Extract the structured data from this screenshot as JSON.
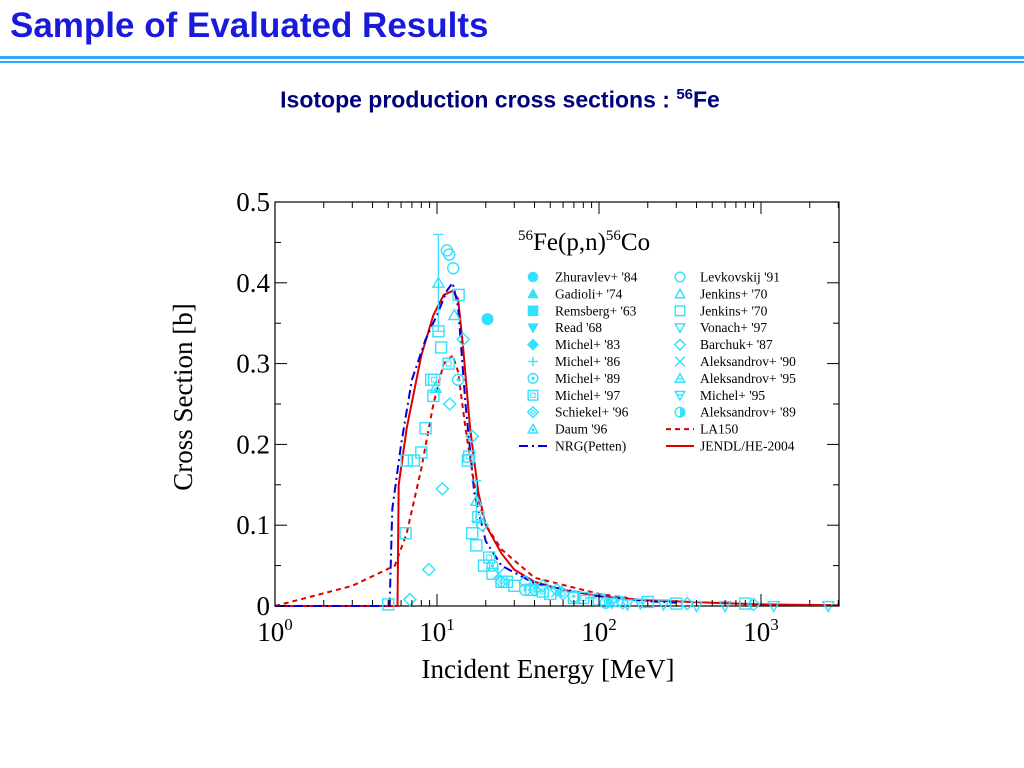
{
  "slide": {
    "title": "Sample of Evaluated Results",
    "subtitle_main": "Isotope production cross sections : ",
    "subtitle_mass": "56",
    "subtitle_element": "Fe"
  },
  "colors": {
    "title": "#1a1adc",
    "subtitle": "#00007a",
    "rule": "#2ea8ff",
    "data_points": "#33e0ff",
    "nrg": "#0000dd",
    "jendl": "#dd0000",
    "la150": "#dd0000"
  },
  "chart_data": {
    "type": "scatter",
    "reaction": {
      "mass_a": "56",
      "target": "Fe(p,n)",
      "mass_b": "56",
      "product": "Co"
    },
    "xlabel": "Incident Energy [MeV]",
    "ylabel": "Cross Section [b]",
    "xscale": "log",
    "xlim": [
      1,
      3000
    ],
    "ylim": [
      0,
      0.5
    ],
    "grid": false,
    "legend_position": "top-right",
    "x_ticks": [
      {
        "value": 1,
        "base": "10",
        "exp": "0"
      },
      {
        "value": 10,
        "base": "10",
        "exp": "1"
      },
      {
        "value": 100,
        "base": "10",
        "exp": "2"
      },
      {
        "value": 1000,
        "base": "10",
        "exp": "3"
      }
    ],
    "y_ticks": [
      {
        "value": 0,
        "label": "0"
      },
      {
        "value": 0.1,
        "label": "0.1"
      },
      {
        "value": 0.2,
        "label": "0.2"
      },
      {
        "value": 0.3,
        "label": "0.3"
      },
      {
        "value": 0.4,
        "label": "0.4"
      },
      {
        "value": 0.5,
        "label": "0.5"
      }
    ],
    "legend": [
      {
        "label": "Zhuravlev+ '84",
        "marker": "circle-filled"
      },
      {
        "label": "Levkovskij '91",
        "marker": "circle-open"
      },
      {
        "label": "Gadioli+ '74",
        "marker": "triangle-up-filled"
      },
      {
        "label": "Jenkins+ '70",
        "marker": "triangle-up-open"
      },
      {
        "label": "Remsberg+ '63",
        "marker": "square-filled"
      },
      {
        "label": "Jenkins+ '70",
        "marker": "square-open"
      },
      {
        "label": "Read '68",
        "marker": "triangle-down-filled"
      },
      {
        "label": "Vonach+ '97",
        "marker": "triangle-down-open"
      },
      {
        "label": "Michel+ '83",
        "marker": "diamond-filled"
      },
      {
        "label": "Barchuk+ '87",
        "marker": "diamond-open"
      },
      {
        "label": "Michel+ '86",
        "marker": "plus"
      },
      {
        "label": "Aleksandrov+ '90",
        "marker": "cross"
      },
      {
        "label": "Michel+ '89",
        "marker": "circle-dot"
      },
      {
        "label": "Aleksandrov+ '95",
        "marker": "triangle-up-lined"
      },
      {
        "label": "Michel+ '97",
        "marker": "square-dot"
      },
      {
        "label": "Michel+ '95",
        "marker": "triangle-down-lined"
      },
      {
        "label": "Schiekel+ '96",
        "marker": "diamond-dot"
      },
      {
        "label": "Aleksandrov+ '89",
        "marker": "circle-half"
      },
      {
        "label": "Daum '96",
        "marker": "triangle-up-dot"
      },
      {
        "label": "LA150",
        "marker": "line-dashed"
      },
      {
        "label": "NRG(Petten)",
        "marker": "line-dashdot"
      },
      {
        "label": "JENDL/HE-2004",
        "marker": "line-solid"
      }
    ],
    "series": [
      {
        "name": "JENDL/HE-2004",
        "style": "solid",
        "x": [
          1,
          5.7,
          5.8,
          6.5,
          8,
          9.5,
          11,
          12.5,
          13.5,
          14.5,
          16,
          18,
          20,
          25,
          30,
          40,
          60,
          100,
          200,
          500,
          1000,
          3000
        ],
        "y": [
          0,
          0,
          0.15,
          0.22,
          0.31,
          0.36,
          0.385,
          0.39,
          0.38,
          0.32,
          0.22,
          0.14,
          0.1,
          0.065,
          0.045,
          0.03,
          0.02,
          0.012,
          0.007,
          0.004,
          0.002,
          0.001
        ]
      },
      {
        "name": "NRG(Petten)",
        "style": "dashdot",
        "x": [
          1,
          5.1,
          5.3,
          6,
          7,
          8.5,
          10,
          11.5,
          12.5,
          13.5,
          15,
          17,
          20,
          25,
          40,
          100,
          200,
          300
        ],
        "y": [
          0,
          0,
          0.12,
          0.2,
          0.28,
          0.33,
          0.36,
          0.39,
          0.4,
          0.37,
          0.25,
          0.14,
          0.08,
          0.05,
          0.028,
          0.012,
          0.006,
          0.004
        ]
      },
      {
        "name": "LA150",
        "style": "dashed",
        "x": [
          1,
          3,
          5.5,
          6.5,
          8,
          9.5,
          11,
          12.5,
          13.5,
          15,
          17,
          20,
          25,
          40,
          100,
          150
        ],
        "y": [
          0,
          0.025,
          0.05,
          0.09,
          0.17,
          0.25,
          0.3,
          0.31,
          0.29,
          0.22,
          0.15,
          0.1,
          0.07,
          0.035,
          0.015,
          0.01
        ]
      }
    ],
    "points": [
      {
        "m": "circle-open",
        "x": 11.5,
        "y": 0.44
      },
      {
        "m": "circle-open",
        "x": 11.9,
        "y": 0.435
      },
      {
        "m": "circle-open",
        "x": 12.6,
        "y": 0.418
      },
      {
        "m": "circle-filled",
        "x": 20.5,
        "y": 0.355
      },
      {
        "m": "triangle-up-open",
        "x": 10.2,
        "y": 0.4
      },
      {
        "m": "triangle-up-open",
        "x": 12.8,
        "y": 0.36
      },
      {
        "m": "square-open",
        "x": 13.6,
        "y": 0.385
      },
      {
        "m": "square-open",
        "x": 10.2,
        "y": 0.34
      },
      {
        "m": "square-open",
        "x": 10.6,
        "y": 0.32
      },
      {
        "m": "square-open",
        "x": 9.2,
        "y": 0.28
      },
      {
        "m": "square-open",
        "x": 9.5,
        "y": 0.26
      },
      {
        "m": "square-open",
        "x": 8.5,
        "y": 0.22
      },
      {
        "m": "square-open",
        "x": 8.0,
        "y": 0.19
      },
      {
        "m": "square-open",
        "x": 7.2,
        "y": 0.18
      },
      {
        "m": "square-open",
        "x": 6.5,
        "y": 0.18
      },
      {
        "m": "square-open",
        "x": 6.4,
        "y": 0.09
      },
      {
        "m": "square-open",
        "x": 5.0,
        "y": 0.002
      },
      {
        "m": "square-open",
        "x": 15.5,
        "y": 0.18
      },
      {
        "m": "square-open",
        "x": 16.5,
        "y": 0.09
      },
      {
        "m": "square-open",
        "x": 17.5,
        "y": 0.075
      },
      {
        "m": "square-open",
        "x": 19.5,
        "y": 0.05
      },
      {
        "m": "square-open",
        "x": 22,
        "y": 0.04
      },
      {
        "m": "square-open",
        "x": 25,
        "y": 0.03
      },
      {
        "m": "square-open",
        "x": 30,
        "y": 0.025
      },
      {
        "m": "square-open",
        "x": 38,
        "y": 0.02
      },
      {
        "m": "square-open",
        "x": 50,
        "y": 0.015
      },
      {
        "m": "square-open",
        "x": 70,
        "y": 0.01
      },
      {
        "m": "square-open",
        "x": 100,
        "y": 0.008
      },
      {
        "m": "square-dot",
        "x": 9.6,
        "y": 0.28
      },
      {
        "m": "square-dot",
        "x": 11.8,
        "y": 0.3
      },
      {
        "m": "square-dot",
        "x": 15.8,
        "y": 0.185
      },
      {
        "m": "square-dot",
        "x": 18,
        "y": 0.11
      },
      {
        "m": "square-dot",
        "x": 21,
        "y": 0.06
      },
      {
        "m": "square-dot",
        "x": 27,
        "y": 0.03
      },
      {
        "m": "square-dot",
        "x": 45,
        "y": 0.018
      },
      {
        "m": "square-dot",
        "x": 80,
        "y": 0.01
      },
      {
        "m": "diamond-open",
        "x": 14.5,
        "y": 0.33
      },
      {
        "m": "diamond-open",
        "x": 12.0,
        "y": 0.25
      },
      {
        "m": "diamond-open",
        "x": 16.5,
        "y": 0.21
      },
      {
        "m": "diamond-open",
        "x": 10.8,
        "y": 0.145
      },
      {
        "m": "diamond-open",
        "x": 8.9,
        "y": 0.045
      },
      {
        "m": "diamond-open",
        "x": 6.8,
        "y": 0.008
      },
      {
        "m": "diamond-open",
        "x": 19,
        "y": 0.1
      },
      {
        "m": "diamond-open",
        "x": 35,
        "y": 0.03
      },
      {
        "m": "diamond-open",
        "x": 45,
        "y": 0.025
      },
      {
        "m": "diamond-open",
        "x": 55,
        "y": 0.02
      },
      {
        "m": "diamond-dot",
        "x": 25,
        "y": 0.03
      },
      {
        "m": "diamond-dot",
        "x": 40,
        "y": 0.02
      },
      {
        "m": "diamond-dot",
        "x": 60,
        "y": 0.015
      },
      {
        "m": "triangle-up-open",
        "x": 17.5,
        "y": 0.13
      },
      {
        "m": "triangle-down-open",
        "x": 150,
        "y": 0.002
      },
      {
        "m": "triangle-down-open",
        "x": 250,
        "y": 0.002
      },
      {
        "m": "triangle-down-open",
        "x": 400,
        "y": 0.0
      },
      {
        "m": "triangle-down-open",
        "x": 600,
        "y": 0.0
      },
      {
        "m": "triangle-down-open",
        "x": 1200,
        "y": 0.0
      },
      {
        "m": "triangle-down-open",
        "x": 2600,
        "y": 0.0
      },
      {
        "m": "triangle-down-lined",
        "x": 120,
        "y": 0.004
      },
      {
        "m": "triangle-down-lined",
        "x": 180,
        "y": 0.003
      },
      {
        "m": "circle-dot",
        "x": 13.5,
        "y": 0.28
      },
      {
        "m": "circle-dot",
        "x": 22,
        "y": 0.05
      },
      {
        "m": "circle-dot",
        "x": 35,
        "y": 0.02
      },
      {
        "m": "circle-dot",
        "x": 70,
        "y": 0.012
      },
      {
        "m": "circle-dot",
        "x": 130,
        "y": 0.006
      },
      {
        "m": "circle-half",
        "x": 110,
        "y": 0.004
      },
      {
        "m": "cross",
        "x": 24,
        "y": 0.04
      },
      {
        "m": "cross",
        "x": 55,
        "y": 0.018
      },
      {
        "m": "plus",
        "x": 40,
        "y": 0.025
      },
      {
        "m": "plus",
        "x": 90,
        "y": 0.01
      },
      {
        "m": "square-open",
        "x": 200,
        "y": 0.005
      },
      {
        "m": "square-open",
        "x": 300,
        "y": 0.003
      },
      {
        "m": "square-open",
        "x": 800,
        "y": 0.003
      },
      {
        "m": "diamond-open",
        "x": 140,
        "y": 0.004
      },
      {
        "m": "diamond-open",
        "x": 350,
        "y": 0.003
      },
      {
        "m": "diamond-open",
        "x": 900,
        "y": 0.002
      },
      {
        "m": "triangle-up-dot",
        "x": 9.8,
        "y": 0.27
      }
    ],
    "error_bars": [
      {
        "x": 10.2,
        "y": 0.4,
        "yerr": 0.06
      },
      {
        "x": 17.5,
        "y": 0.13,
        "yerr": 0.025
      }
    ]
  }
}
